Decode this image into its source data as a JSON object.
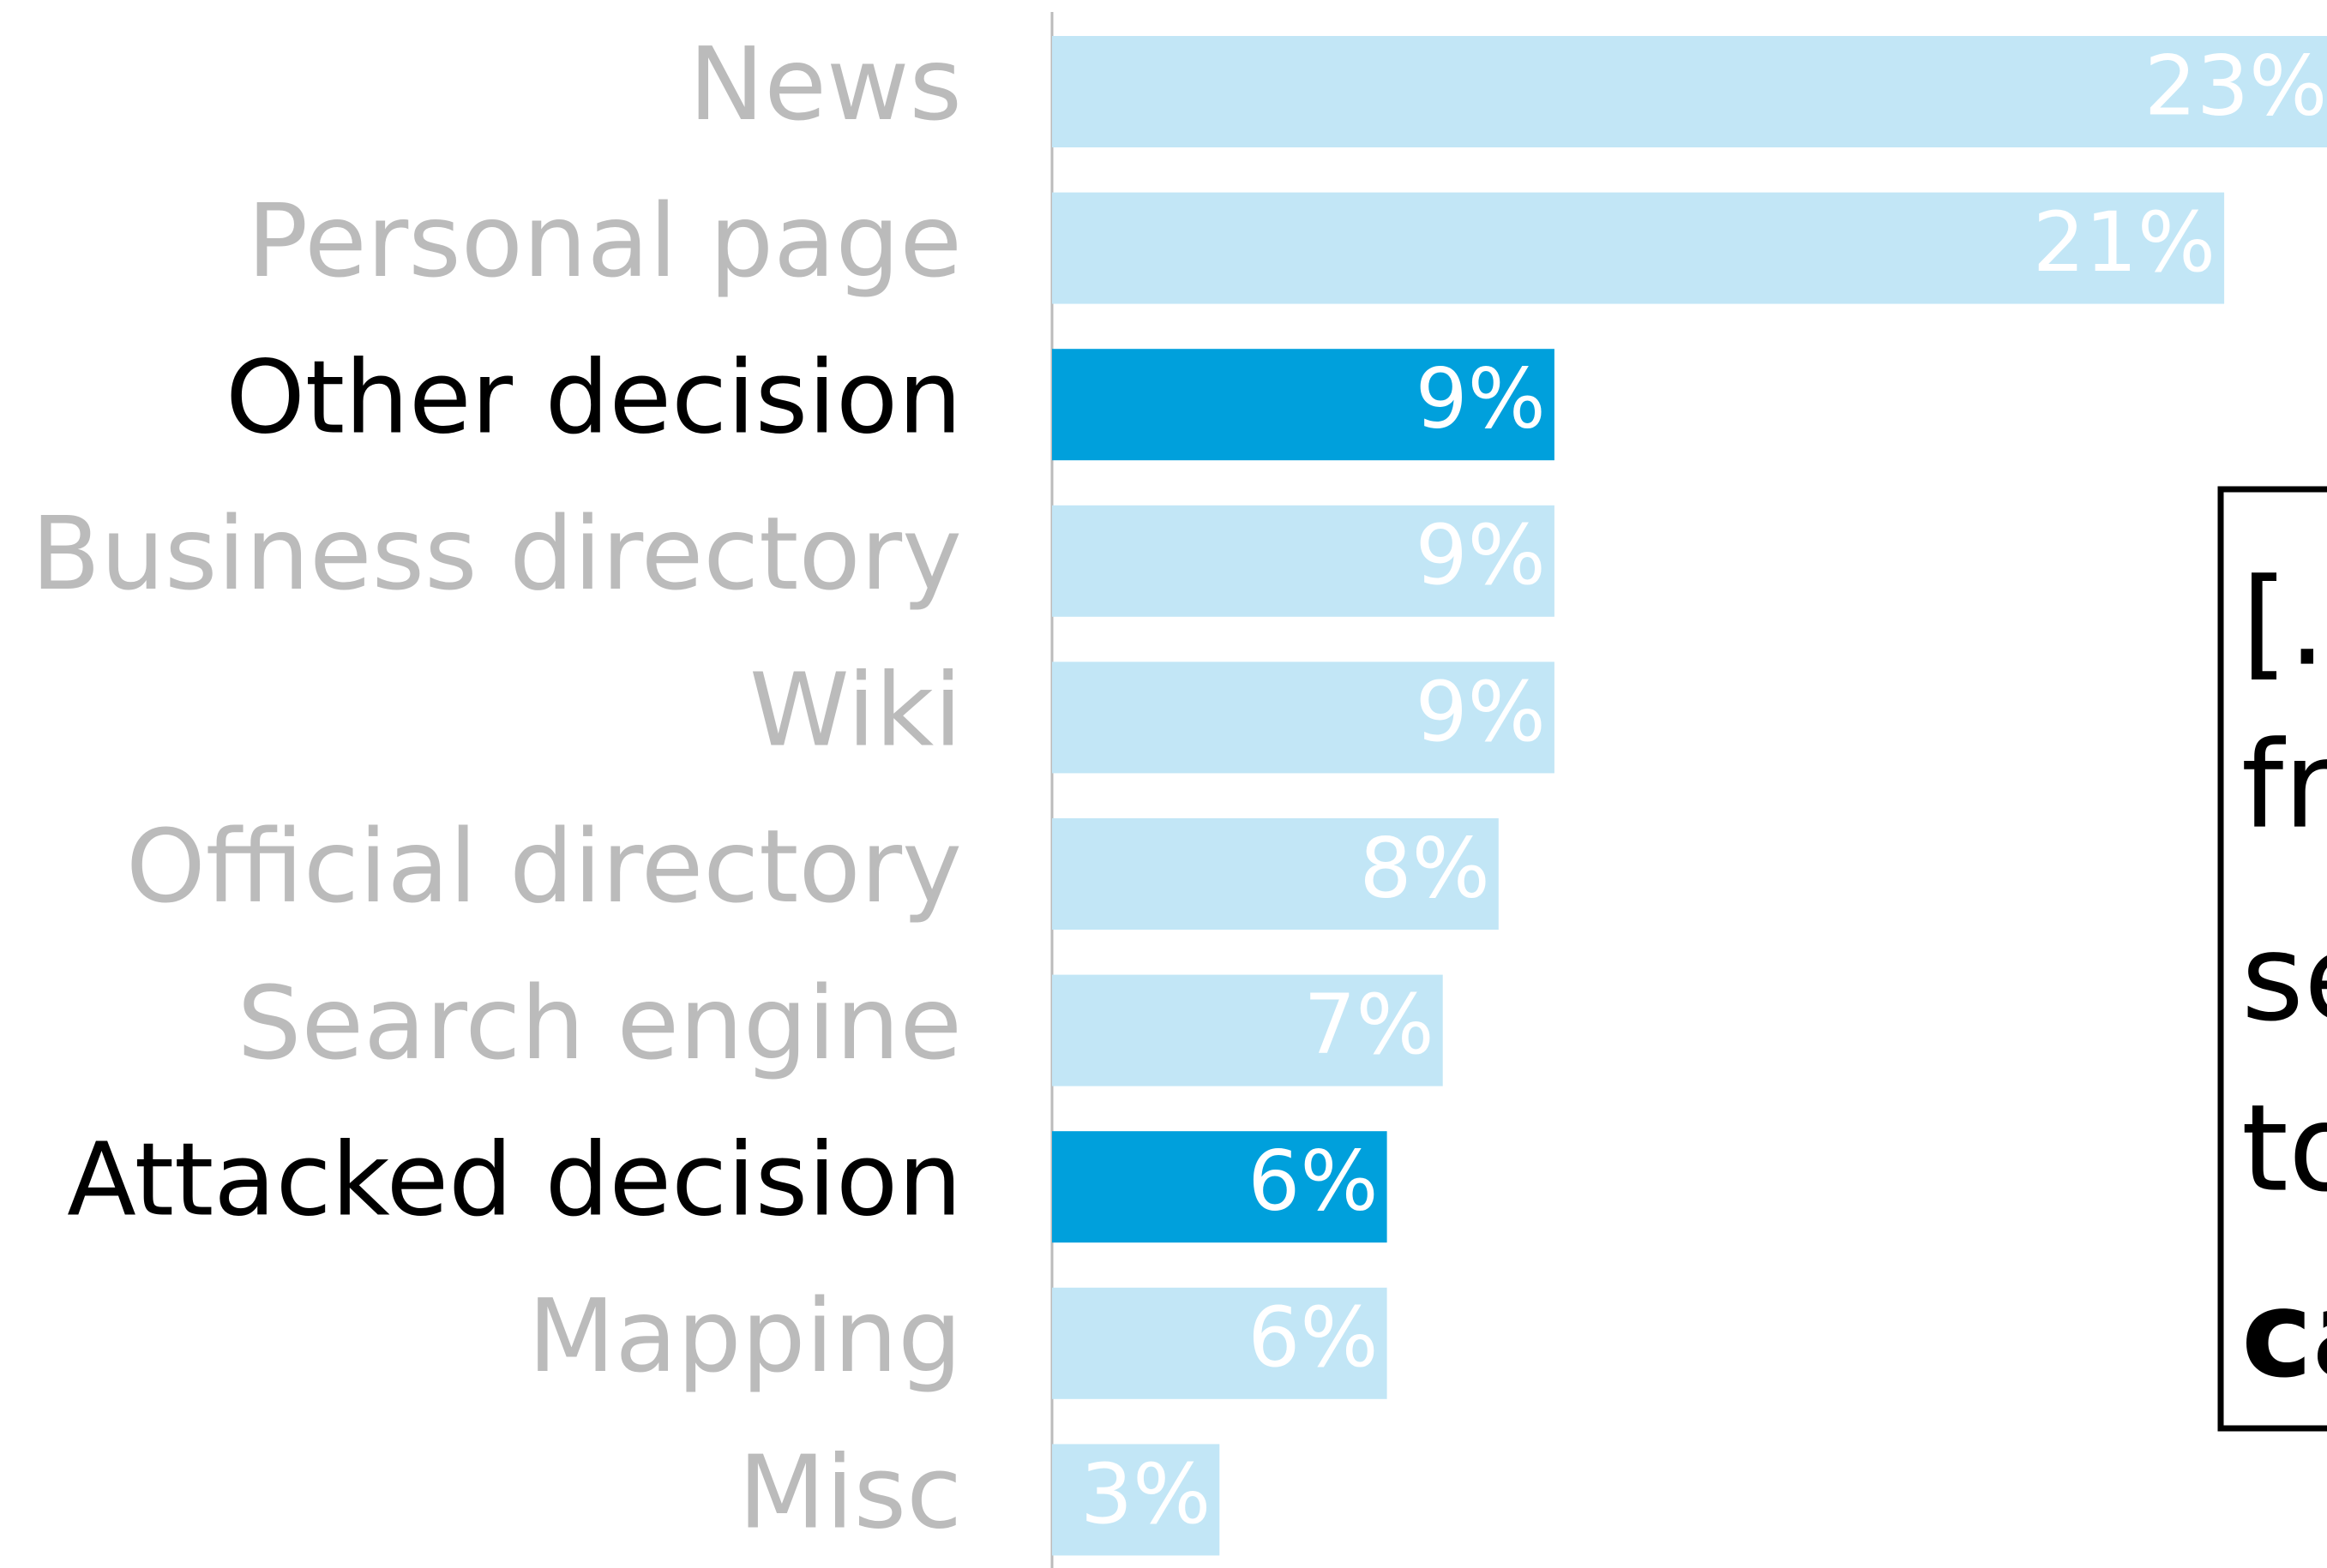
{
  "chart_data": {
    "type": "barh",
    "categories": [
      "News",
      "Personal page",
      "Other decision",
      "Business directory",
      "Wiki",
      "Official directory",
      "Search engine",
      "Attacked decision",
      "Mapping",
      "Misc"
    ],
    "values": [
      23,
      21,
      9,
      9,
      9,
      8,
      7,
      6,
      6,
      3
    ],
    "value_labels": [
      "23%",
      "21%",
      "9%",
      "9%",
      "9%",
      "8%",
      "7%",
      "6%",
      "6%",
      "3%"
    ],
    "colors": [
      "#c2e6f6",
      "#c2e6f6",
      "#00a0dc",
      "#c2e6f6",
      "#c2e6f6",
      "#c2e6f6",
      "#c2e6f6",
      "#00a0dc",
      "#c2e6f6",
      "#c2e6f6"
    ],
    "annotation": [
      "[.",
      "fr",
      "se",
      "to",
      "ca"
    ]
  }
}
